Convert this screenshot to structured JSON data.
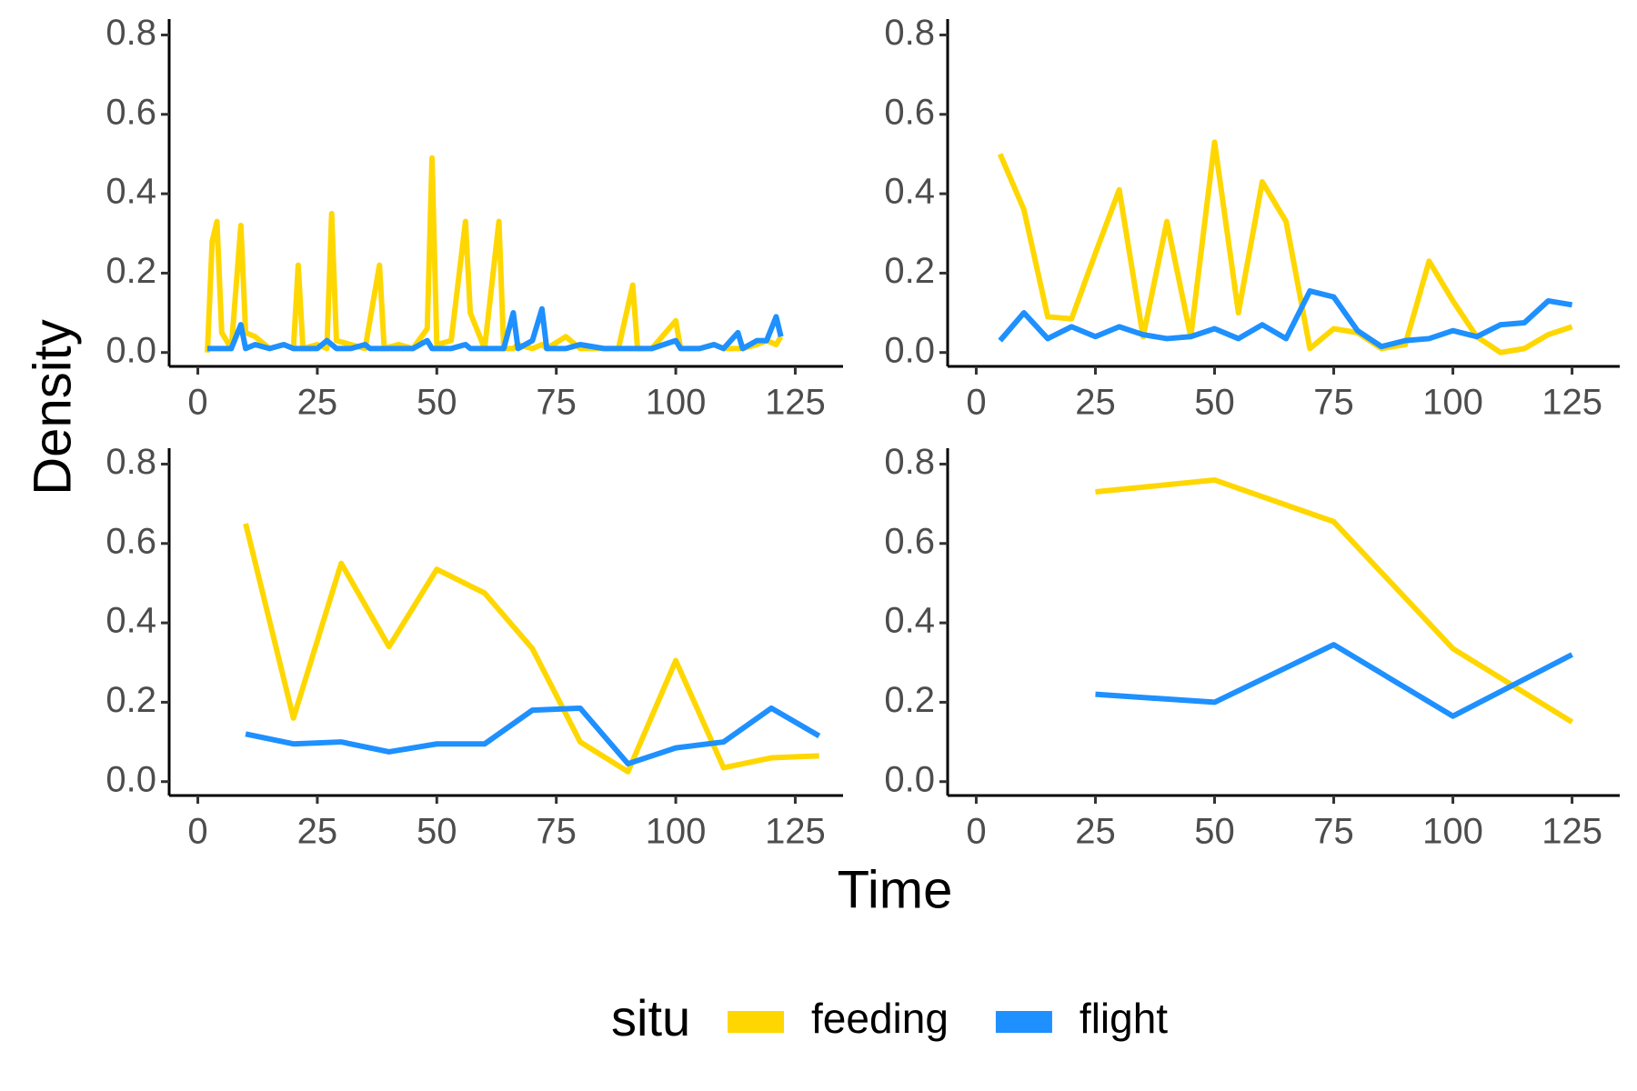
{
  "y_label": "Density",
  "x_label": "Time",
  "legend_title": "situ",
  "chart_data": [
    {
      "type": "line",
      "xlim": [
        -6,
        135
      ],
      "ylim": [
        -0.035,
        0.84
      ],
      "xticks": [
        0,
        25,
        50,
        75,
        100,
        125
      ],
      "yticks": [
        {
          "value": 0,
          "label": "0.0"
        },
        0.2,
        0.4,
        0.6,
        0.8
      ],
      "x": [
        2,
        3,
        4,
        5,
        7,
        9,
        10,
        12,
        15,
        18,
        20,
        21,
        22,
        25,
        27,
        28,
        29,
        32,
        35,
        36,
        38,
        39,
        42,
        45,
        48,
        49,
        50,
        53,
        56,
        57,
        60,
        63,
        64,
        66,
        67,
        70,
        72,
        73,
        77,
        80,
        85,
        88,
        91,
        92,
        95,
        100,
        101,
        105,
        108,
        110,
        113,
        114,
        117,
        119,
        121,
        122
      ],
      "series": [
        {
          "name": "feeding",
          "color": "#FFD700",
          "values": [
            0,
            0.28,
            0.33,
            0.05,
            0.01,
            0.32,
            0.05,
            0.04,
            0.01,
            0.02,
            0.01,
            0.22,
            0.01,
            0.02,
            0.01,
            0.35,
            0.03,
            0.02,
            0.01,
            0.08,
            0.22,
            0.01,
            0.02,
            0.01,
            0.06,
            0.49,
            0.02,
            0.03,
            0.33,
            0.1,
            0.01,
            0.33,
            0.01,
            0.01,
            0.02,
            0.01,
            0.02,
            0.01,
            0.04,
            0.01,
            0.01,
            0.01,
            0.17,
            0.01,
            0.01,
            0.08,
            0.01,
            0.01,
            0.02,
            0.01,
            0.01,
            0.01,
            0.02,
            0.03,
            0.02,
            0.04
          ]
        },
        {
          "name": "flight",
          "color": "#1E90FF",
          "values": [
            0.01,
            0.01,
            0.01,
            0.01,
            0.01,
            0.07,
            0.01,
            0.02,
            0.01,
            0.02,
            0.01,
            0.01,
            0.01,
            0.01,
            0.03,
            0.02,
            0.01,
            0.01,
            0.02,
            0.01,
            0.01,
            0.01,
            0.01,
            0.01,
            0.03,
            0.01,
            0.01,
            0.01,
            0.02,
            0.01,
            0.01,
            0.01,
            0.01,
            0.1,
            0.01,
            0.03,
            0.11,
            0.01,
            0.01,
            0.02,
            0.01,
            0.01,
            0.01,
            0.01,
            0.01,
            0.03,
            0.01,
            0.01,
            0.02,
            0.01,
            0.05,
            0.01,
            0.03,
            0.03,
            0.09,
            0.04
          ]
        }
      ]
    },
    {
      "type": "line",
      "xlim": [
        -6,
        135
      ],
      "ylim": [
        -0.035,
        0.84
      ],
      "xticks": [
        0,
        25,
        50,
        75,
        100,
        125
      ],
      "yticks": [
        {
          "value": 0,
          "label": "0.0"
        },
        0.2,
        0.4,
        0.6,
        0.8
      ],
      "x": [
        5,
        10,
        15,
        20,
        25,
        30,
        35,
        40,
        45,
        50,
        55,
        60,
        65,
        70,
        75,
        80,
        85,
        90,
        95,
        100,
        105,
        110,
        115,
        120,
        125
      ],
      "series": [
        {
          "name": "feeding",
          "color": "#FFD700",
          "values": [
            0.5,
            0.36,
            0.09,
            0.085,
            0.25,
            0.41,
            0.04,
            0.33,
            0.04,
            0.53,
            0.1,
            0.43,
            0.33,
            0.01,
            0.06,
            0.05,
            0.01,
            0.02,
            0.23,
            0.13,
            0.04,
            0.0,
            0.01,
            0.045,
            0.065
          ]
        },
        {
          "name": "flight",
          "color": "#1E90FF",
          "values": [
            0.03,
            0.1,
            0.035,
            0.065,
            0.04,
            0.065,
            0.045,
            0.035,
            0.04,
            0.06,
            0.035,
            0.07,
            0.035,
            0.155,
            0.14,
            0.055,
            0.015,
            0.03,
            0.035,
            0.055,
            0.04,
            0.07,
            0.075,
            0.13,
            0.12
          ]
        }
      ]
    },
    {
      "type": "line",
      "xlim": [
        -6,
        135
      ],
      "ylim": [
        -0.035,
        0.84
      ],
      "xticks": [
        0,
        25,
        50,
        75,
        100,
        125
      ],
      "yticks": [
        {
          "value": 0,
          "label": "0.0"
        },
        0.2,
        0.4,
        0.6,
        0.8
      ],
      "x": [
        10,
        20,
        30,
        40,
        50,
        60,
        70,
        80,
        90,
        100,
        110,
        120,
        130
      ],
      "series": [
        {
          "name": "feeding",
          "color": "#FFD700",
          "values": [
            0.65,
            0.16,
            0.55,
            0.34,
            0.535,
            0.475,
            0.335,
            0.1,
            0.025,
            0.305,
            0.035,
            0.06,
            0.065
          ]
        },
        {
          "name": "flight",
          "color": "#1E90FF",
          "values": [
            0.12,
            0.095,
            0.1,
            0.075,
            0.095,
            0.095,
            0.18,
            0.185,
            0.045,
            0.085,
            0.1,
            0.185,
            0.115
          ]
        }
      ]
    },
    {
      "type": "line",
      "xlim": [
        -6,
        135
      ],
      "ylim": [
        -0.035,
        0.84
      ],
      "xticks": [
        0,
        25,
        50,
        75,
        100,
        125
      ],
      "yticks": [
        {
          "value": 0,
          "label": "0.0"
        },
        0.2,
        0.4,
        0.6,
        0.8
      ],
      "x": [
        25,
        50,
        75,
        100,
        125
      ],
      "series": [
        {
          "name": "feeding",
          "color": "#FFD700",
          "values": [
            0.73,
            0.76,
            0.655,
            0.335,
            0.15
          ]
        },
        {
          "name": "flight",
          "color": "#1E90FF",
          "values": [
            0.22,
            0.2,
            0.345,
            0.165,
            0.32
          ]
        }
      ]
    }
  ]
}
